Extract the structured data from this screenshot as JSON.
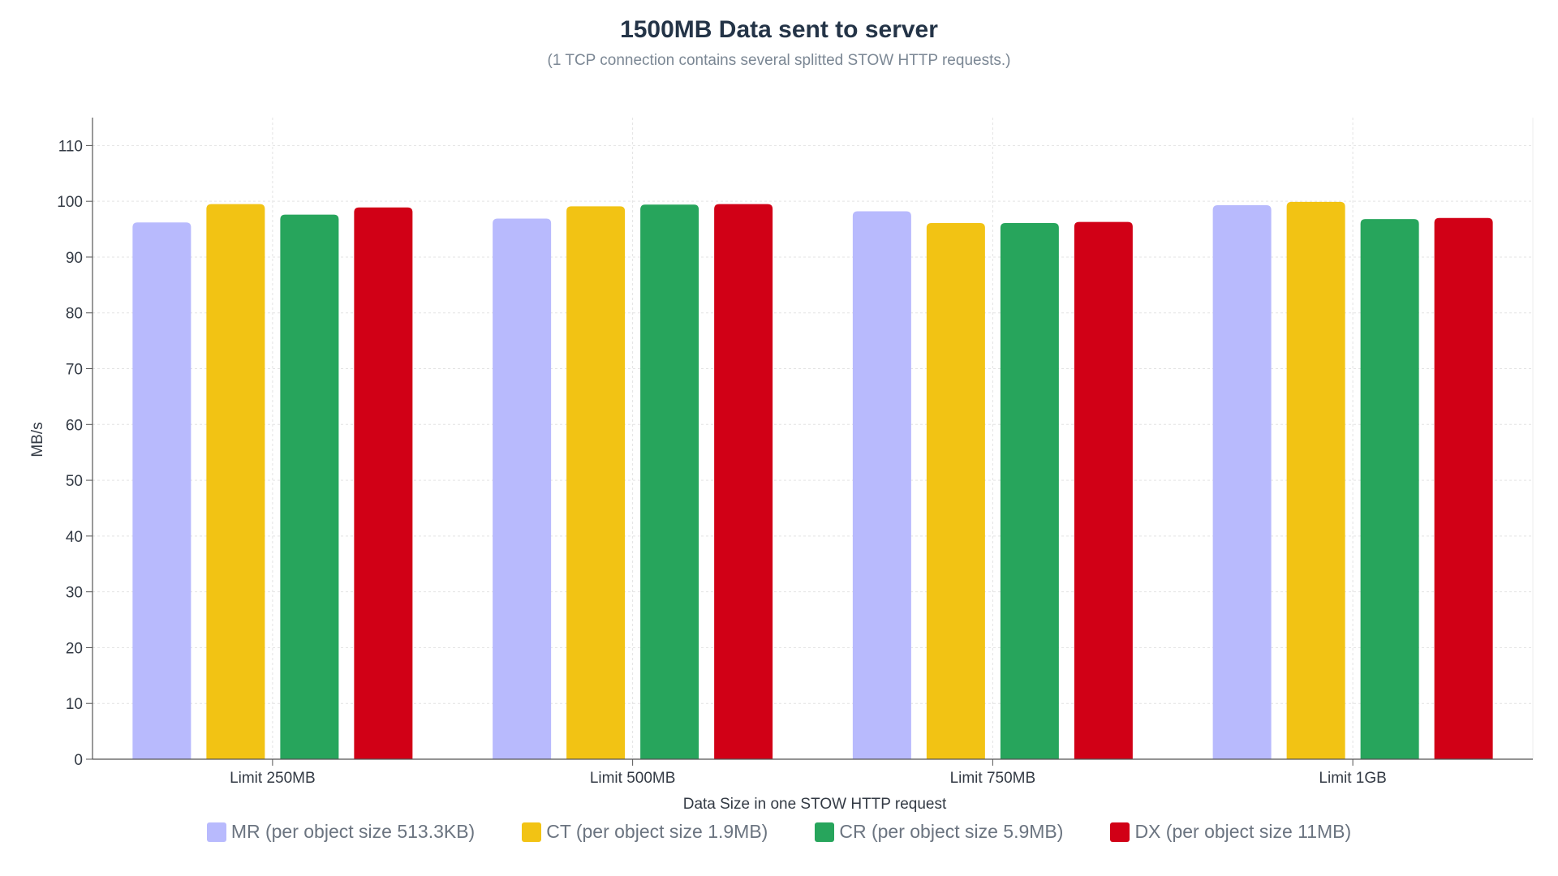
{
  "chart_data": {
    "type": "bar",
    "title": "1500MB Data sent to server",
    "subtitle": "(1 TCP connection contains several splitted STOW HTTP requests.)",
    "xlabel": "Data Size in one STOW HTTP request",
    "ylabel": "MB/s",
    "ylim": [
      0,
      115
    ],
    "yticks": [
      0,
      10,
      20,
      30,
      40,
      50,
      60,
      70,
      80,
      90,
      100,
      110
    ],
    "grid": true,
    "legend_position": "bottom",
    "categories": [
      "Limit 250MB",
      "Limit 500MB",
      "Limit 750MB",
      "Limit 1GB"
    ],
    "series": [
      {
        "name": "MR (per object size 513.3KB)",
        "color": "#b8bafd",
        "values": [
          96.2,
          96.9,
          98.2,
          99.3
        ]
      },
      {
        "name": "CT (per object size 1.9MB)",
        "color": "#f2c314",
        "values": [
          99.5,
          99.1,
          96.1,
          99.9
        ]
      },
      {
        "name": "CR (per object size 5.9MB)",
        "color": "#27a55c",
        "values": [
          97.6,
          99.4,
          96.1,
          96.8
        ]
      },
      {
        "name": "DX (per object size 11MB)",
        "color": "#d10016",
        "values": [
          98.9,
          99.5,
          96.3,
          97.0
        ]
      }
    ]
  }
}
